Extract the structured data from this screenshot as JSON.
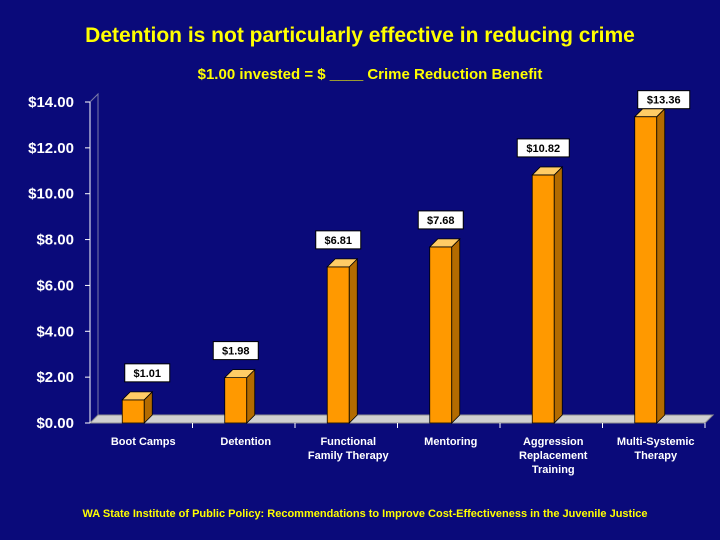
{
  "slide": {
    "title": "Detention is not particularly effective in reducing crime",
    "footer": "WA State Institute of Public Policy:  Recommendations to Improve Cost-Effectiveness in the Juvenile Justice"
  },
  "colors": {
    "background": "#0a0a7a",
    "text": "#ffff00",
    "bar_front": "#ff9900",
    "bar_side": "#b36b00",
    "bar_top": "#ffcc66"
  },
  "chart_data": {
    "type": "bar",
    "title": "$1.00 invested  =  $ ____ Crime Reduction Benefit",
    "xlabel": "",
    "ylabel": "",
    "ylim": [
      0,
      14
    ],
    "ytick_labels": [
      "$0.00",
      "$2.00",
      "$4.00",
      "$6.00",
      "$8.00",
      "$10.00",
      "$12.00",
      "$14.00"
    ],
    "ytick_values": [
      0,
      2,
      4,
      6,
      8,
      10,
      12,
      14
    ],
    "categories": [
      [
        "Boot Camps"
      ],
      [
        "Detention"
      ],
      [
        "Functional",
        "Family Therapy"
      ],
      [
        "Mentoring"
      ],
      [
        "Aggression",
        "Replacement",
        "Training"
      ],
      [
        "Multi-Systemic",
        "Therapy"
      ]
    ],
    "values": [
      1.01,
      1.98,
      6.81,
      7.68,
      10.82,
      13.36
    ],
    "value_labels": [
      "$1.01",
      "$1.98",
      "$6.81",
      "$7.68",
      "$10.82",
      "$13.36"
    ],
    "grid": false,
    "legend": "none"
  }
}
